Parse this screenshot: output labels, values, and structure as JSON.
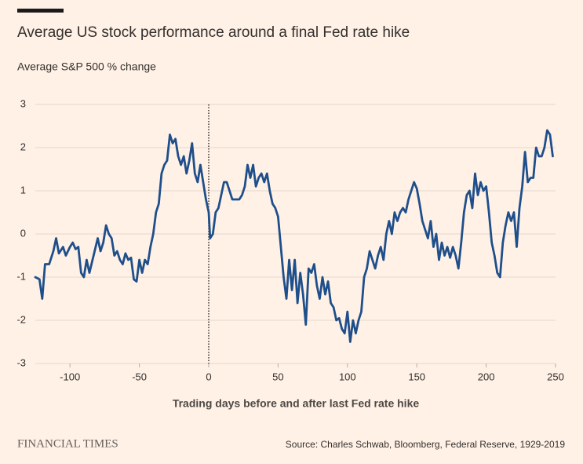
{
  "chart_data": {
    "type": "line",
    "title": "Average US stock performance around a final Fed rate hike",
    "subtitle": "Average S&P 500 % change",
    "x_label": "Trading days before and after last Fed rate hike",
    "source": "Source: Charles Schwab, Bloomberg, Federal Reserve, 1929-2019",
    "brand": "FINANCIAL TIMES",
    "color": "#1f4f8b",
    "grid": true,
    "vline": 0,
    "xlim": [
      -125,
      250
    ],
    "ylim": [
      -3,
      3
    ],
    "xticks": [
      -100,
      -50,
      0,
      50,
      100,
      150,
      200,
      250
    ],
    "yticks": [
      -3,
      -2,
      -1,
      0,
      1,
      2,
      3
    ],
    "x": [
      -125,
      -122,
      -120,
      -118,
      -115,
      -112,
      -110,
      -108,
      -105,
      -103,
      -100,
      -98,
      -96,
      -94,
      -92,
      -90,
      -88,
      -86,
      -83,
      -80,
      -78,
      -76,
      -74,
      -72,
      -70,
      -68,
      -66,
      -64,
      -62,
      -60,
      -58,
      -56,
      -54,
      -52,
      -50,
      -48,
      -46,
      -44,
      -42,
      -40,
      -38,
      -36,
      -34,
      -32,
      -30,
      -28,
      -26,
      -24,
      -22,
      -20,
      -18,
      -16,
      -14,
      -12,
      -10,
      -8,
      -6,
      -4,
      -2,
      0,
      1,
      3,
      5,
      7,
      9,
      11,
      13,
      15,
      17,
      19,
      22,
      24,
      26,
      28,
      30,
      32,
      34,
      36,
      38,
      40,
      42,
      44,
      46,
      48,
      50,
      52,
      54,
      56,
      58,
      60,
      62,
      64,
      66,
      68,
      70,
      72,
      74,
      76,
      78,
      80,
      82,
      84,
      86,
      88,
      90,
      92,
      94,
      96,
      98,
      100,
      102,
      104,
      106,
      108,
      110,
      112,
      114,
      116,
      118,
      120,
      122,
      124,
      126,
      128,
      130,
      132,
      134,
      136,
      138,
      140,
      142,
      144,
      146,
      148,
      150,
      152,
      154,
      156,
      158,
      160,
      162,
      164,
      166,
      168,
      170,
      172,
      174,
      176,
      178,
      180,
      182,
      184,
      186,
      188,
      190,
      192,
      194,
      196,
      198,
      200,
      202,
      204,
      206,
      208,
      210,
      212,
      214,
      216,
      218,
      220,
      222,
      224,
      226,
      228,
      230,
      232,
      234,
      236,
      238,
      240,
      242,
      244,
      246,
      248
    ],
    "values": [
      -1.0,
      -1.05,
      -1.5,
      -0.7,
      -0.7,
      -0.4,
      -0.1,
      -0.45,
      -0.3,
      -0.5,
      -0.3,
      -0.2,
      -0.35,
      -0.3,
      -0.9,
      -1.0,
      -0.6,
      -0.9,
      -0.5,
      -0.1,
      -0.4,
      -0.2,
      0.2,
      0.0,
      -0.1,
      -0.5,
      -0.4,
      -0.6,
      -0.7,
      -0.45,
      -0.6,
      -0.55,
      -1.05,
      -1.1,
      -0.6,
      -0.9,
      -0.6,
      -0.7,
      -0.3,
      0.0,
      0.5,
      0.7,
      1.4,
      1.6,
      1.7,
      2.3,
      2.1,
      2.2,
      1.8,
      1.6,
      1.8,
      1.4,
      1.7,
      2.1,
      1.4,
      1.2,
      1.6,
      1.2,
      0.8,
      0.5,
      -0.1,
      0.0,
      0.5,
      0.6,
      0.9,
      1.2,
      1.2,
      1.0,
      0.8,
      0.8,
      0.8,
      0.9,
      1.1,
      1.6,
      1.3,
      1.6,
      1.1,
      1.3,
      1.4,
      1.2,
      1.4,
      1.0,
      0.7,
      0.6,
      0.4,
      -0.3,
      -1.0,
      -1.5,
      -0.6,
      -1.3,
      -0.6,
      -1.6,
      -0.9,
      -1.4,
      -2.1,
      -0.8,
      -0.9,
      -0.7,
      -1.2,
      -1.5,
      -1.0,
      -1.4,
      -1.1,
      -1.6,
      -1.7,
      -2.0,
      -1.95,
      -2.2,
      -2.3,
      -1.8,
      -2.5,
      -2.0,
      -2.3,
      -2.0,
      -1.8,
      -1.0,
      -0.8,
      -0.4,
      -0.6,
      -0.8,
      -0.5,
      -0.3,
      -0.6,
      0.0,
      0.3,
      0.0,
      0.5,
      0.3,
      0.5,
      0.6,
      0.5,
      0.8,
      1.0,
      1.2,
      1.05,
      0.7,
      0.3,
      0.1,
      -0.1,
      0.3,
      -0.3,
      0.0,
      -0.6,
      -0.2,
      -0.5,
      -0.3,
      -0.55,
      -0.3,
      -0.5,
      -0.8,
      -0.2,
      0.5,
      0.9,
      1.0,
      0.6,
      1.4,
      0.9,
      1.2,
      1.0,
      1.1,
      0.5,
      -0.2,
      -0.5,
      -0.9,
      -1.0,
      -0.2,
      0.2,
      0.5,
      0.3,
      0.5,
      -0.3,
      0.6,
      1.1,
      1.9,
      1.2,
      1.3,
      1.3,
      2.0,
      1.8,
      1.8,
      2.0,
      2.4,
      2.3,
      1.8
    ]
  }
}
